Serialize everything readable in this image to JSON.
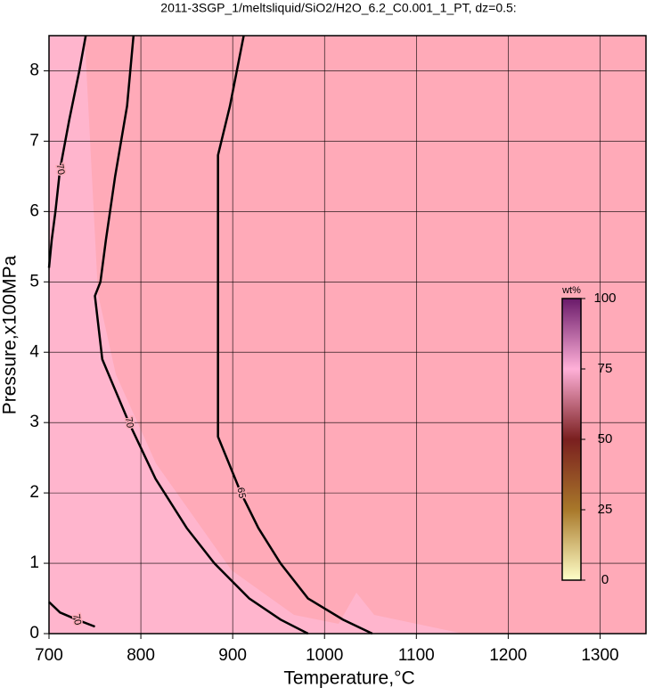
{
  "chart_data": {
    "type": "contour",
    "title": "2011-3SGP_1/meltsliquid/SiO2/H2O_6.2_C0.001_1_PT, dz=0.5:",
    "x_label": "Temperature,°C",
    "y_label": "Pressure,x100MPa",
    "xlim": [
      700,
      1350
    ],
    "ylim": [
      0,
      8.5
    ],
    "xticks": [
      700,
      800,
      900,
      1000,
      1100,
      1200,
      1300
    ],
    "yticks": [
      0,
      1,
      2,
      3,
      4,
      5,
      6,
      7,
      8
    ],
    "grid": true,
    "fill_color": "#ffaab8",
    "line_color": "#000000",
    "contours": [
      {
        "level": 70,
        "x": [
          740,
          733,
          722,
          712,
          707,
          703,
          700
        ],
        "y": [
          8.5,
          8,
          7.3,
          6.6,
          6,
          5.6,
          5.2
        ]
      },
      {
        "level": 70,
        "x": [
          792,
          785,
          772,
          762,
          756,
          750,
          758,
          787,
          816,
          850,
          880,
          918,
          952,
          982
        ],
        "y": [
          8.5,
          7.5,
          6.5,
          5.6,
          5,
          4.8,
          3.9,
          3,
          2.2,
          1.5,
          1,
          0.5,
          0.2,
          0
        ]
      },
      {
        "level": 65,
        "x": [
          912,
          897,
          884,
          884,
          884,
          909,
          928,
          952,
          982,
          1020,
          1052
        ],
        "y": [
          8.5,
          7.5,
          6.8,
          5,
          2.8,
          2,
          1.5,
          1,
          0.5,
          0.2,
          0
        ]
      },
      {
        "level": 70,
        "x": [
          700,
          712,
          730,
          750
        ],
        "y": [
          0.45,
          0.3,
          0.2,
          0.1
        ]
      }
    ],
    "colorbar": {
      "label": "wt%",
      "lim": [
        0,
        100
      ],
      "ticks": [
        0,
        25,
        50,
        75,
        100
      ],
      "colors": [
        "#ffffc8",
        "#a8782a",
        "#7a1f1f",
        "#ffb0d8",
        "#6a1a6a"
      ]
    }
  }
}
